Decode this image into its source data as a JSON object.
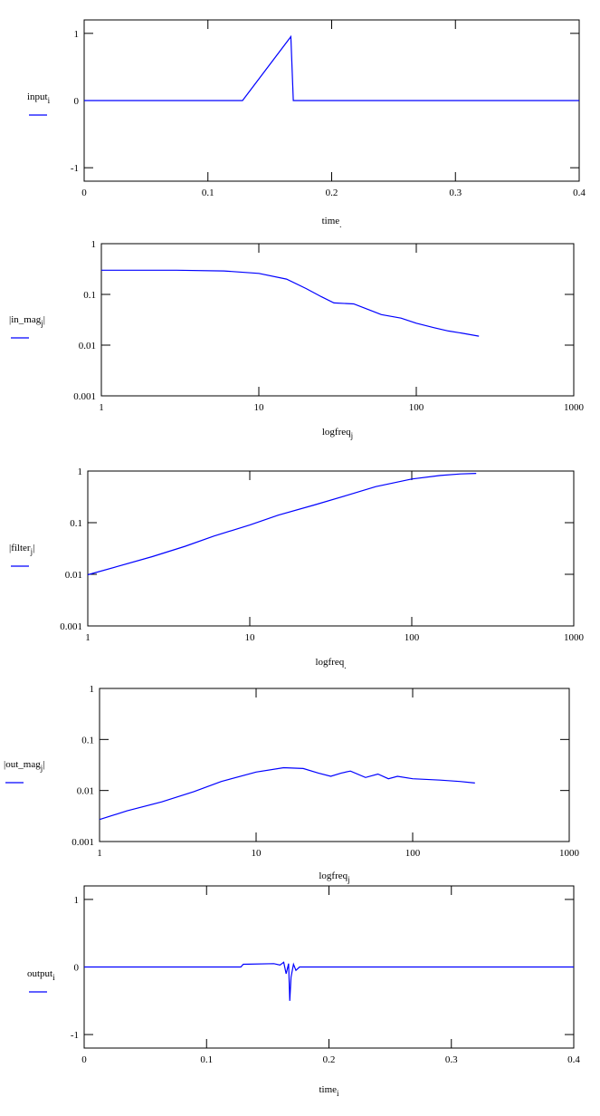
{
  "trace_color": "#0000ff",
  "chart_data": [
    {
      "type": "line",
      "ylabel": "input",
      "ylabel_sub": "i",
      "xlabel": "time",
      "xlabel_sub": ".",
      "xlim": [
        0,
        0.4
      ],
      "ylim": [
        -1.2,
        1.2
      ],
      "x_scale": "linear",
      "y_scale": "linear",
      "x_ticks": [
        0,
        0.1,
        0.2,
        0.3,
        0.4
      ],
      "x_tick_labels": [
        "0",
        "0.1",
        "0.2",
        "0.3",
        "0.4"
      ],
      "y_ticks": [
        -1,
        0,
        1
      ],
      "y_tick_labels": [
        "-1",
        "0",
        "1"
      ],
      "series": [
        {
          "x": [
            0,
            0.128,
            0.167,
            0.167,
            0.169,
            0.4
          ],
          "y": [
            0,
            0,
            0.95,
            0.95,
            0,
            0
          ]
        }
      ]
    },
    {
      "type": "line",
      "ylabel": "|in_mag",
      "ylabel_sub": "j",
      "ylabel_suffix": "|",
      "xlabel": "logfreq",
      "xlabel_sub": "j",
      "xlim": [
        1,
        1000
      ],
      "ylim": [
        0.001,
        1
      ],
      "x_scale": "log",
      "y_scale": "log",
      "x_ticks": [
        1,
        10,
        100,
        1000
      ],
      "x_tick_labels": [
        "1",
        "10",
        "100",
        "1000"
      ],
      "y_ticks": [
        0.001,
        0.01,
        0.1,
        1
      ],
      "y_tick_labels": [
        "0.001",
        "0.01",
        "0.1",
        "1"
      ],
      "series": [
        {
          "x": [
            1,
            3,
            6,
            10,
            15,
            20,
            25,
            30,
            40,
            50,
            60,
            80,
            100,
            130,
            160,
            200,
            250
          ],
          "y": [
            0.3,
            0.3,
            0.29,
            0.26,
            0.2,
            0.13,
            0.09,
            0.068,
            0.065,
            0.05,
            0.04,
            0.034,
            0.027,
            0.022,
            0.019,
            0.017,
            0.015
          ]
        }
      ]
    },
    {
      "type": "line",
      "ylabel": "|filter",
      "ylabel_sub": "j",
      "ylabel_suffix": "|",
      "xlabel": "logfreq",
      "xlabel_sub": ".",
      "xlim": [
        1,
        1000
      ],
      "ylim": [
        0.001,
        1
      ],
      "x_scale": "log",
      "y_scale": "log",
      "x_ticks": [
        1,
        10,
        100,
        1000
      ],
      "x_tick_labels": [
        "1",
        "10",
        "100",
        "1000"
      ],
      "y_ticks": [
        0.001,
        0.01,
        0.1,
        1
      ],
      "y_tick_labels": [
        "0.001",
        "0.01",
        "0.1",
        "1"
      ],
      "series": [
        {
          "x": [
            1,
            1.5,
            2.5,
            4,
            6,
            10,
            15,
            25,
            40,
            60,
            100,
            150,
            200,
            250
          ],
          "y": [
            0.0098,
            0.014,
            0.022,
            0.035,
            0.055,
            0.09,
            0.14,
            0.22,
            0.34,
            0.5,
            0.7,
            0.82,
            0.88,
            0.9
          ]
        }
      ]
    },
    {
      "type": "line",
      "ylabel": "|out_mag",
      "ylabel_sub": "j",
      "ylabel_suffix": "|",
      "xlabel": "logfreq",
      "xlabel_sub": "j",
      "xlim": [
        1,
        1000
      ],
      "ylim": [
        0.001,
        1
      ],
      "x_scale": "log",
      "y_scale": "log",
      "x_ticks": [
        1,
        10,
        100,
        1000
      ],
      "x_tick_labels": [
        "1",
        "10",
        "100",
        "1000"
      ],
      "y_ticks": [
        0.001,
        0.01,
        0.1,
        1
      ],
      "y_tick_labels": [
        "0.001",
        "0.01",
        "0.1",
        "1"
      ],
      "series": [
        {
          "x": [
            1,
            1.5,
            2.5,
            4,
            6,
            10,
            15,
            20,
            25,
            30,
            35,
            40,
            50,
            60,
            70,
            80,
            100,
            150,
            200,
            250
          ],
          "y": [
            0.0027,
            0.004,
            0.006,
            0.0095,
            0.015,
            0.023,
            0.028,
            0.027,
            0.022,
            0.019,
            0.022,
            0.024,
            0.018,
            0.021,
            0.017,
            0.019,
            0.017,
            0.016,
            0.015,
            0.014
          ]
        }
      ]
    },
    {
      "type": "line",
      "ylabel": "output",
      "ylabel_sub": "i",
      "xlabel": "time",
      "xlabel_sub": "i",
      "xlim": [
        0,
        0.4
      ],
      "ylim": [
        -1.2,
        1.2
      ],
      "x_scale": "linear",
      "y_scale": "linear",
      "x_ticks": [
        0,
        0.1,
        0.2,
        0.3,
        0.4
      ],
      "x_tick_labels": [
        "0",
        "0.1",
        "0.2",
        "0.3",
        "0.4"
      ],
      "y_ticks": [
        -1,
        0,
        1
      ],
      "y_tick_labels": [
        "-1",
        "0",
        "1"
      ],
      "series": [
        {
          "x": [
            0,
            0.128,
            0.13,
            0.155,
            0.16,
            0.163,
            0.165,
            0.167,
            0.168,
            0.169,
            0.171,
            0.173,
            0.176,
            0.4
          ],
          "y": [
            0,
            0,
            0.04,
            0.05,
            0.03,
            0.07,
            -0.1,
            0.05,
            -0.5,
            -0.15,
            0.04,
            -0.05,
            0,
            0
          ]
        }
      ]
    }
  ]
}
